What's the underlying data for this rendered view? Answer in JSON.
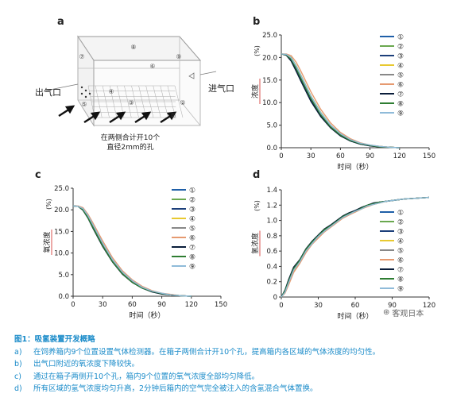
{
  "panels": {
    "a": {
      "letter": "a",
      "left_label": "出气口",
      "right_label": "进气口",
      "note_line1": "在两侧合计开10个",
      "note_line2": "直径2mm的孔",
      "positions": [
        "①",
        "②",
        "③",
        "④",
        "⑤",
        "⑥",
        "⑦",
        "⑧",
        "⑨"
      ]
    },
    "b": {
      "letter": "b"
    },
    "c": {
      "letter": "c"
    },
    "d": {
      "letter": "d"
    }
  },
  "legend": [
    "①",
    "②",
    "③",
    "④",
    "⑤",
    "⑥",
    "⑦",
    "⑧",
    "⑨"
  ],
  "series_colors": [
    "#1f5fa8",
    "#6aa84f",
    "#1c3f7a",
    "#e8c930",
    "#888888",
    "#e69a70",
    "#0a1d3a",
    "#2e7d32",
    "#8fbbd9"
  ],
  "chart_data": [
    {
      "type": "line",
      "panel": "b",
      "ylabel": "浓度",
      "yunit": "(%)",
      "xlabel": "时间（秒）",
      "xlim": [
        0,
        150
      ],
      "ylim": [
        0,
        25
      ],
      "xticks": [
        0,
        30,
        60,
        90,
        120,
        150
      ],
      "yticks": [
        0.0,
        5.0,
        10.0,
        15.0,
        20.0,
        25.0
      ],
      "ytick_labels": [
        "0.0",
        "5.0",
        "10.0",
        "15.0",
        "20.0",
        "25.0"
      ],
      "x": [
        0,
        5,
        10,
        15,
        20,
        30,
        40,
        50,
        60,
        70,
        80,
        90,
        100,
        110,
        120
      ],
      "series": [
        {
          "name": "①",
          "values": [
            20.8,
            20.6,
            19.5,
            17.5,
            15.2,
            10.8,
            7.2,
            4.6,
            2.8,
            1.6,
            0.9,
            0.5,
            0.3,
            0.1,
            0.0
          ]
        },
        {
          "name": "②",
          "values": [
            20.8,
            20.7,
            20.0,
            18.2,
            16.0,
            11.5,
            7.8,
            5.0,
            3.1,
            1.8,
            1.0,
            0.5,
            0.3,
            0.1,
            0.0
          ]
        },
        {
          "name": "③",
          "values": [
            20.8,
            20.6,
            19.4,
            17.3,
            15.0,
            10.6,
            7.1,
            4.5,
            2.7,
            1.5,
            0.8,
            0.4,
            0.2,
            0.1,
            0.0
          ]
        },
        {
          "name": "④",
          "values": [
            20.8,
            20.7,
            19.8,
            18.0,
            15.8,
            11.3,
            7.6,
            4.9,
            3.0,
            1.7,
            0.9,
            0.5,
            0.3,
            0.1,
            0.0
          ]
        },
        {
          "name": "⑤",
          "values": [
            20.8,
            20.6,
            19.6,
            17.7,
            15.4,
            11.0,
            7.4,
            4.7,
            2.9,
            1.6,
            0.9,
            0.5,
            0.2,
            0.1,
            0.0
          ]
        },
        {
          "name": "⑥",
          "values": [
            20.8,
            20.8,
            20.4,
            19.0,
            16.9,
            12.4,
            8.5,
            5.5,
            3.4,
            2.0,
            1.1,
            0.6,
            0.3,
            0.1,
            0.0
          ]
        },
        {
          "name": "⑦",
          "values": [
            20.8,
            20.5,
            19.2,
            17.0,
            14.7,
            10.3,
            6.9,
            4.4,
            2.6,
            1.5,
            0.8,
            0.4,
            0.2,
            0.1,
            0.0
          ]
        },
        {
          "name": "⑧",
          "values": [
            20.8,
            20.6,
            19.6,
            17.6,
            15.3,
            10.9,
            7.3,
            4.6,
            2.8,
            1.6,
            0.9,
            0.5,
            0.2,
            0.1,
            0.0
          ]
        },
        {
          "name": "⑨",
          "values": [
            20.8,
            20.7,
            19.9,
            18.1,
            15.9,
            11.4,
            7.7,
            5.0,
            3.1,
            1.8,
            1.0,
            0.6,
            0.3,
            0.1,
            0.0
          ]
        }
      ]
    },
    {
      "type": "line",
      "panel": "c",
      "ylabel": "氧浓度",
      "yunit": "(%)",
      "xlabel": "时间（秒）",
      "xlim": [
        0,
        150
      ],
      "ylim": [
        0,
        25
      ],
      "xticks": [
        0,
        30,
        60,
        90,
        120,
        150
      ],
      "yticks": [
        0.0,
        5.0,
        10.0,
        15.0,
        20.0,
        25.0
      ],
      "ytick_labels": [
        "0.0",
        "5.0",
        "10.0",
        "15.0",
        "20.0",
        "25.0"
      ],
      "x": [
        0,
        5,
        10,
        15,
        20,
        30,
        40,
        50,
        60,
        70,
        80,
        90,
        100,
        110,
        120
      ],
      "series": [
        {
          "name": "①",
          "values": [
            20.9,
            20.8,
            20.1,
            18.3,
            16.1,
            11.8,
            8.1,
            5.3,
            3.3,
            2.0,
            1.1,
            0.6,
            0.3,
            0.1,
            0.0
          ]
        },
        {
          "name": "②",
          "values": [
            20.9,
            20.8,
            20.2,
            18.5,
            16.3,
            12.0,
            8.3,
            5.4,
            3.4,
            2.0,
            1.2,
            0.6,
            0.3,
            0.1,
            0.0
          ]
        },
        {
          "name": "③",
          "values": [
            20.9,
            20.8,
            20.0,
            18.2,
            16.0,
            11.7,
            8.0,
            5.2,
            3.2,
            1.9,
            1.1,
            0.6,
            0.3,
            0.1,
            0.0
          ]
        },
        {
          "name": "④",
          "values": [
            20.9,
            20.8,
            20.3,
            18.6,
            16.5,
            12.2,
            8.4,
            5.5,
            3.5,
            2.1,
            1.2,
            0.6,
            0.3,
            0.1,
            0.0
          ]
        },
        {
          "name": "⑤",
          "values": [
            20.9,
            20.8,
            20.1,
            18.4,
            16.2,
            11.9,
            8.2,
            5.3,
            3.3,
            2.0,
            1.1,
            0.6,
            0.3,
            0.1,
            0.0
          ]
        },
        {
          "name": "⑥",
          "values": [
            20.9,
            20.9,
            20.5,
            19.0,
            17.0,
            12.8,
            8.9,
            5.9,
            3.8,
            2.3,
            1.3,
            0.7,
            0.4,
            0.1,
            0.0
          ]
        },
        {
          "name": "⑦",
          "values": [
            20.9,
            20.8,
            19.9,
            18.1,
            15.8,
            11.5,
            7.9,
            5.1,
            3.2,
            1.9,
            1.0,
            0.5,
            0.3,
            0.1,
            0.0
          ]
        },
        {
          "name": "⑧",
          "values": [
            20.9,
            20.8,
            20.0,
            18.2,
            16.0,
            11.7,
            8.0,
            5.2,
            3.2,
            1.9,
            1.1,
            0.6,
            0.3,
            0.1,
            0.0
          ]
        },
        {
          "name": "⑨",
          "values": [
            20.9,
            20.8,
            20.3,
            18.7,
            16.6,
            12.3,
            8.5,
            5.6,
            3.6,
            2.1,
            1.2,
            0.7,
            0.3,
            0.1,
            0.0
          ]
        }
      ]
    },
    {
      "type": "line",
      "panel": "d",
      "ylabel": "氢浓度",
      "yunit": "(%)",
      "xlabel": "时间（秒）",
      "xlim": [
        0,
        120
      ],
      "ylim": [
        0,
        1.4
      ],
      "xticks": [
        0,
        30,
        60,
        90,
        120
      ],
      "yticks": [
        0.0,
        0.2,
        0.4,
        0.6,
        0.8,
        1.0,
        1.2,
        1.4
      ],
      "ytick_labels": [
        "0",
        "0.2",
        "0.4",
        "0.6",
        "0.8",
        "1.0",
        "1.2",
        "1.4"
      ],
      "x": [
        0,
        3,
        6,
        10,
        15,
        20,
        25,
        30,
        35,
        40,
        45,
        50,
        55,
        60,
        65,
        70,
        75,
        80,
        85,
        90,
        95,
        100,
        110,
        120
      ],
      "series": [
        {
          "name": "①",
          "values": [
            0.0,
            0.08,
            0.22,
            0.38,
            0.48,
            0.62,
            0.72,
            0.8,
            0.88,
            0.93,
            0.99,
            1.05,
            1.09,
            1.12,
            1.16,
            1.2,
            1.22,
            1.24,
            1.25,
            1.26,
            1.27,
            1.28,
            1.29,
            1.3
          ]
        },
        {
          "name": "②",
          "values": [
            0.0,
            0.07,
            0.2,
            0.36,
            0.47,
            0.61,
            0.71,
            0.79,
            0.87,
            0.92,
            0.98,
            1.04,
            1.08,
            1.11,
            1.15,
            1.19,
            1.22,
            1.24,
            1.25,
            1.26,
            1.27,
            1.28,
            1.29,
            1.3
          ]
        },
        {
          "name": "③",
          "values": [
            0.0,
            0.08,
            0.21,
            0.37,
            0.48,
            0.62,
            0.72,
            0.8,
            0.88,
            0.94,
            1.0,
            1.05,
            1.09,
            1.13,
            1.16,
            1.2,
            1.22,
            1.24,
            1.25,
            1.26,
            1.27,
            1.28,
            1.29,
            1.3
          ]
        },
        {
          "name": "④",
          "values": [
            0.0,
            0.06,
            0.18,
            0.34,
            0.46,
            0.6,
            0.7,
            0.78,
            0.86,
            0.92,
            0.98,
            1.04,
            1.08,
            1.12,
            1.15,
            1.19,
            1.21,
            1.23,
            1.25,
            1.26,
            1.27,
            1.28,
            1.29,
            1.3
          ]
        },
        {
          "name": "⑤",
          "values": [
            0.0,
            0.07,
            0.2,
            0.36,
            0.47,
            0.61,
            0.71,
            0.79,
            0.87,
            0.93,
            0.99,
            1.04,
            1.08,
            1.12,
            1.16,
            1.19,
            1.22,
            1.24,
            1.25,
            1.26,
            1.27,
            1.28,
            1.29,
            1.3
          ]
        },
        {
          "name": "⑥",
          "values": [
            0.0,
            0.05,
            0.16,
            0.32,
            0.44,
            0.58,
            0.69,
            0.77,
            0.85,
            0.91,
            0.97,
            1.03,
            1.07,
            1.11,
            1.15,
            1.18,
            1.21,
            1.23,
            1.25,
            1.26,
            1.27,
            1.28,
            1.29,
            1.3
          ]
        },
        {
          "name": "⑦",
          "values": [
            0.0,
            0.09,
            0.23,
            0.39,
            0.49,
            0.63,
            0.73,
            0.81,
            0.89,
            0.94,
            1.0,
            1.06,
            1.1,
            1.13,
            1.17,
            1.2,
            1.23,
            1.24,
            1.25,
            1.26,
            1.27,
            1.28,
            1.29,
            1.3
          ]
        },
        {
          "name": "⑧",
          "values": [
            0.0,
            0.08,
            0.21,
            0.37,
            0.48,
            0.62,
            0.72,
            0.8,
            0.88,
            0.93,
            0.99,
            1.05,
            1.09,
            1.12,
            1.16,
            1.2,
            1.22,
            1.24,
            1.25,
            1.26,
            1.27,
            1.28,
            1.29,
            1.3
          ]
        },
        {
          "name": "⑨",
          "values": [
            0.0,
            0.06,
            0.19,
            0.35,
            0.46,
            0.6,
            0.7,
            0.79,
            0.86,
            0.92,
            0.98,
            1.04,
            1.08,
            1.12,
            1.15,
            1.19,
            1.21,
            1.23,
            1.25,
            1.26,
            1.27,
            1.28,
            1.29,
            1.3
          ]
        }
      ]
    }
  ],
  "caption": {
    "title": "图1：吸氢装置开发概略",
    "lines": [
      {
        "label": "a)",
        "text": "在饲养箱内9个位置设置气体检测器。在箱子两侧合计开10个孔，提高箱内各区域的气体浓度的均匀性。"
      },
      {
        "label": "b)",
        "text": "出气口附近的氧浓度下降较快。"
      },
      {
        "label": "c)",
        "text": "通过在箱子两侧开10个孔，箱内9个位置的氧气浓度全部均匀降低。"
      },
      {
        "label": "d)",
        "text": "所有区域的氢气浓度均匀升高，2分钟后箱内的空气完全被注入的含氢混合气体置换。"
      }
    ]
  },
  "watermark": "客观日本"
}
